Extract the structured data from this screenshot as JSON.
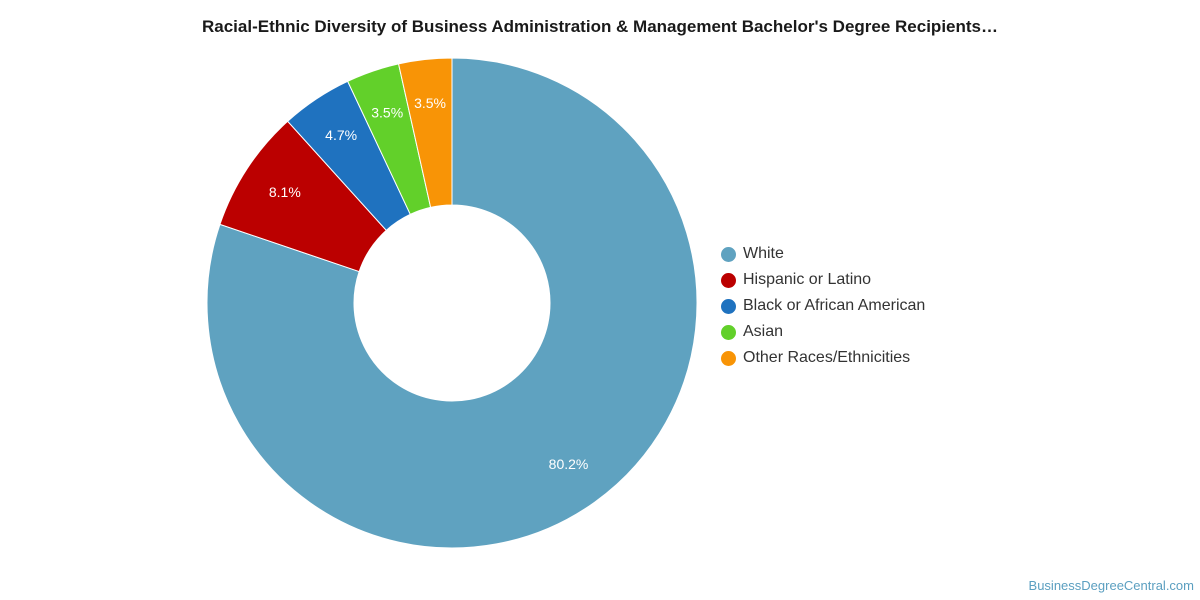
{
  "chart_data": {
    "type": "pie",
    "title": "Racial-Ethnic Diversity of Business Administration & Management Bachelor's Degree Recipients…",
    "donut": true,
    "legend_position": "right",
    "series": [
      {
        "name": "White",
        "value": 80.2,
        "label": "80.2%",
        "color": "#5fa2c0"
      },
      {
        "name": "Hispanic or Latino",
        "value": 8.1,
        "label": "8.1%",
        "color": "#bb0000"
      },
      {
        "name": "Black or African American",
        "value": 4.7,
        "label": "4.7%",
        "color": "#1f72bf"
      },
      {
        "name": "Asian",
        "value": 3.5,
        "label": "3.5%",
        "color": "#62d02a"
      },
      {
        "name": "Other Races/Ethnicities",
        "value": 3.5,
        "label": "3.5%",
        "color": "#f89406"
      }
    ]
  },
  "watermark": "BusinessDegreeCentral.com"
}
